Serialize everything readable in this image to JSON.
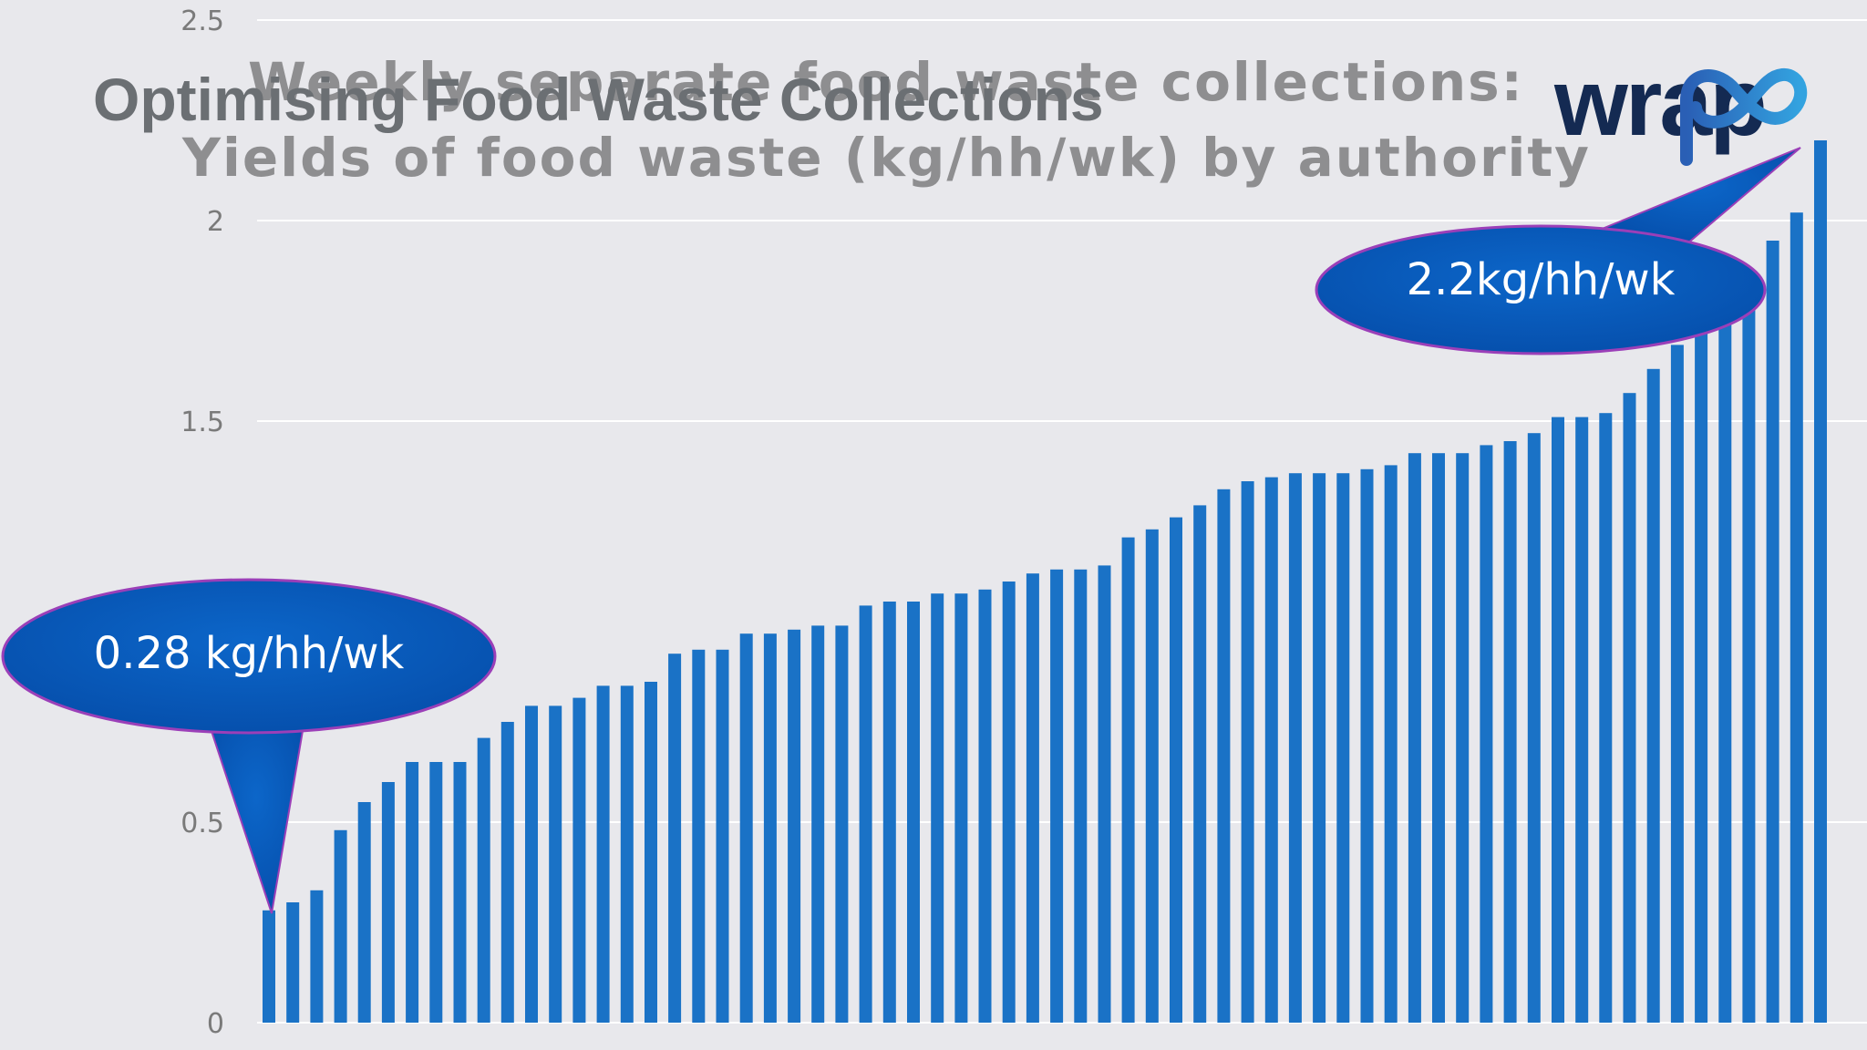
{
  "slide": {
    "title": "Optimising Food Waste Collections",
    "logo_text": "wrap"
  },
  "chart_data": {
    "type": "bar",
    "title": "Weekly separate food waste collections:",
    "subtitle": "Yields of food waste (kg/hh/wk) by authority",
    "xlabel": "",
    "ylabel": "",
    "ylim": [
      0,
      2.5
    ],
    "yticks": [
      "0",
      "0.5",
      "1.5",
      "2",
      "2.5"
    ],
    "ytick_values": [
      0,
      0.5,
      1.5,
      2,
      2.5
    ],
    "grid": true,
    "color": "#1a72c6",
    "values": [
      0.28,
      0.3,
      0.33,
      0.48,
      0.55,
      0.6,
      0.65,
      0.65,
      0.65,
      0.71,
      0.75,
      0.79,
      0.79,
      0.81,
      0.84,
      0.84,
      0.85,
      0.92,
      0.93,
      0.93,
      0.97,
      0.97,
      0.98,
      0.99,
      0.99,
      1.04,
      1.05,
      1.05,
      1.07,
      1.07,
      1.08,
      1.1,
      1.12,
      1.13,
      1.13,
      1.14,
      1.21,
      1.23,
      1.26,
      1.29,
      1.33,
      1.35,
      1.36,
      1.37,
      1.37,
      1.37,
      1.38,
      1.39,
      1.42,
      1.42,
      1.42,
      1.44,
      1.45,
      1.47,
      1.51,
      1.51,
      1.52,
      1.57,
      1.63,
      1.69,
      1.75,
      1.8,
      1.87,
      1.95,
      2.02,
      2.2
    ],
    "annotations": [
      {
        "text": "0.28 kg/hh/wk",
        "points_to": "min"
      },
      {
        "text": "2.2kg/hh/wk",
        "points_to": "max"
      }
    ]
  }
}
